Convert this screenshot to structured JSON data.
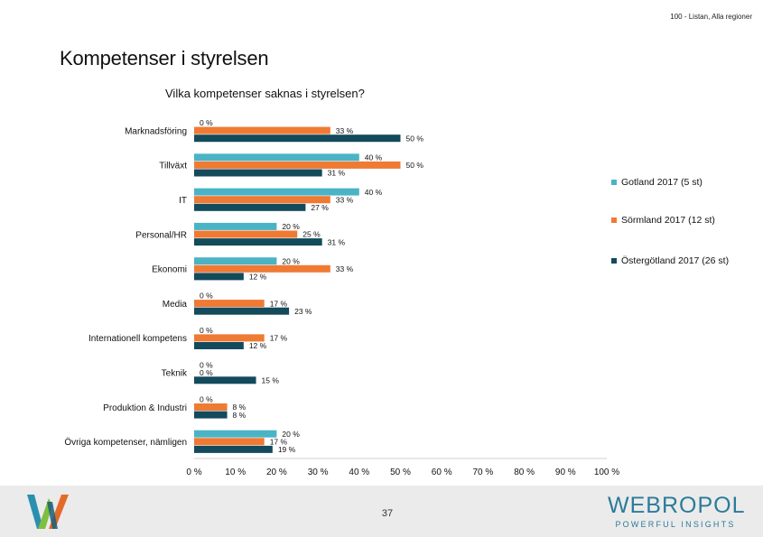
{
  "header": {
    "top_label": "100 - Listan, Alla regioner",
    "title": "Kompetenser i styrelsen"
  },
  "footer": {
    "page_number": "37",
    "brand_name": "WEBROPOL",
    "brand_tag": "POWERFUL INSIGHTS"
  },
  "colors": {
    "gotland": "#4bb3c6",
    "sormland": "#ef7a34",
    "ostergotland": "#134a5c"
  },
  "chart_data": {
    "type": "bar",
    "orientation": "horizontal",
    "title": "Vilka kompetenser saknas i styrelsen?",
    "categories": [
      "Marknadsföring",
      "Tillväxt",
      "IT",
      "Personal/HR",
      "Ekonomi",
      "Media",
      "Internationell kompetens",
      "Teknik",
      "Produktion & Industri",
      "Övriga kompetenser, nämligen"
    ],
    "series": [
      {
        "name": "Gotland 2017 (5 st)",
        "color_key": "gotland",
        "values": [
          0,
          40,
          40,
          20,
          20,
          0,
          0,
          0,
          0,
          20
        ]
      },
      {
        "name": "Sörmland 2017 (12 st)",
        "color_key": "sormland",
        "values": [
          33,
          50,
          33,
          25,
          33,
          17,
          17,
          0,
          8,
          17
        ]
      },
      {
        "name": "Östergötland 2017 (26 st)",
        "color_key": "ostergotland",
        "values": [
          50,
          31,
          27,
          31,
          12,
          23,
          12,
          15,
          8,
          19
        ]
      }
    ],
    "xlim": [
      0,
      100
    ],
    "xticks": [
      0,
      10,
      20,
      30,
      40,
      50,
      60,
      70,
      80,
      90,
      100
    ],
    "tick_suffix": " %",
    "value_suffix": " %",
    "legend_position": "right",
    "grid": false
  }
}
